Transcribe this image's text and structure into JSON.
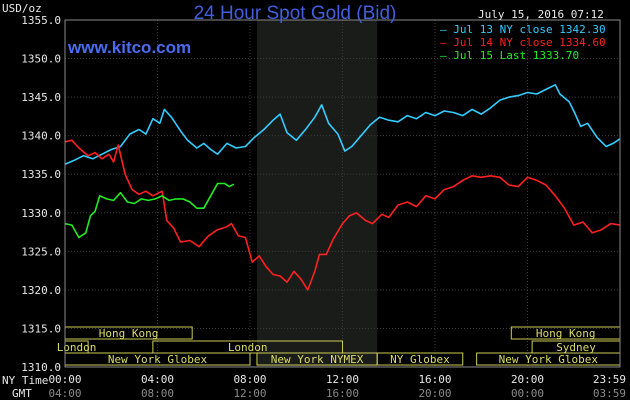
{
  "header": {
    "title": "24 Hour Spot Gold (Bid)",
    "date": "July 15, 2016 07:12",
    "units": "USD/oz",
    "brand": "www.kitco.com",
    "x_label_ny": "NY Time",
    "x_label_gmt": "GMT"
  },
  "colors": {
    "background": "#000000",
    "plot_background": "#000000",
    "night_shade": "#1a1c1a",
    "grid": "#3a3a3a",
    "jul13": "#33ccff",
    "jul14": "#ff2020",
    "jul15": "#22ee22",
    "market_border": "#cccc55",
    "market_text": "#dcdc6a"
  },
  "markets": [
    {
      "name": "Hong Kong",
      "start": 0,
      "end": 5.5,
      "row": 0
    },
    {
      "name": "Hong Kong",
      "start": 19.3,
      "end": 24,
      "row": 0
    },
    {
      "name": "London",
      "start": 0,
      "end": 1.0,
      "row": 1
    },
    {
      "name": "London",
      "start": 3.8,
      "end": 12.0,
      "row": 1
    },
    {
      "name": "Sydney",
      "start": 20.2,
      "end": 24,
      "row": 1
    },
    {
      "name": "New York Globex",
      "start": 0,
      "end": 8.0,
      "row": 2
    },
    {
      "name": "New York NYMEX",
      "start": 8.3,
      "end": 13.5,
      "row": 2
    },
    {
      "name": "NY Globex",
      "start": 13.5,
      "end": 17.2,
      "row": 2
    },
    {
      "name": "New York Globex",
      "start": 17.8,
      "end": 24,
      "row": 2
    }
  ],
  "chart_data": {
    "type": "line",
    "title": "24 Hour Spot Gold (Bid)",
    "ylabel": "USD/oz",
    "ylim": [
      1310,
      1355
    ],
    "xlim": [
      0,
      24
    ],
    "yticks": [
      "1310.0",
      "1315.0",
      "1320.0",
      "1325.0",
      "1330.0",
      "1335.0",
      "1340.0",
      "1345.0",
      "1350.0",
      "1355.0"
    ],
    "ny_ticks": [
      "00:00",
      "04:00",
      "08:00",
      "12:00",
      "16:00",
      "20:00",
      "23:59"
    ],
    "gmt_ticks": [
      "04:00",
      "08:00",
      "12:00",
      "16:00",
      "20:00",
      "00:00",
      "03:59"
    ],
    "grid": true,
    "night_band": [
      8.3,
      13.5
    ],
    "legend_position": "top-right",
    "series": [
      {
        "name": "Jul 13 NY close 1342.30",
        "color": "#33ccff",
        "points": [
          [
            0,
            1336.3
          ],
          [
            0.4,
            1336.8
          ],
          [
            0.8,
            1337.4
          ],
          [
            1.2,
            1337.0
          ],
          [
            1.6,
            1337.6
          ],
          [
            2,
            1338.2
          ],
          [
            2.4,
            1338.6
          ],
          [
            2.8,
            1340.2
          ],
          [
            3.2,
            1340.8
          ],
          [
            3.5,
            1340.2
          ],
          [
            3.8,
            1342.2
          ],
          [
            4.1,
            1341.6
          ],
          [
            4.3,
            1343.4
          ],
          [
            4.6,
            1342.4
          ],
          [
            5,
            1340.6
          ],
          [
            5.3,
            1339.4
          ],
          [
            5.7,
            1338.4
          ],
          [
            6,
            1339.0
          ],
          [
            6.3,
            1338.2
          ],
          [
            6.6,
            1337.6
          ],
          [
            7,
            1339.0
          ],
          [
            7.4,
            1338.4
          ],
          [
            7.8,
            1338.6
          ],
          [
            8.2,
            1339.8
          ],
          [
            8.6,
            1340.8
          ],
          [
            9,
            1342.0
          ],
          [
            9.3,
            1342.8
          ],
          [
            9.6,
            1340.4
          ],
          [
            10,
            1339.4
          ],
          [
            10.4,
            1340.8
          ],
          [
            10.8,
            1342.4
          ],
          [
            11.1,
            1344.0
          ],
          [
            11.4,
            1341.6
          ],
          [
            11.8,
            1340.2
          ],
          [
            12.1,
            1338.0
          ],
          [
            12.4,
            1338.6
          ],
          [
            12.8,
            1340.0
          ],
          [
            13.2,
            1341.4
          ],
          [
            13.6,
            1342.4
          ],
          [
            14,
            1342.0
          ],
          [
            14.4,
            1341.8
          ],
          [
            14.8,
            1342.6
          ],
          [
            15.2,
            1342.2
          ],
          [
            15.6,
            1343.0
          ],
          [
            16,
            1342.6
          ],
          [
            16.4,
            1343.2
          ],
          [
            16.8,
            1343.0
          ],
          [
            17.2,
            1342.6
          ],
          [
            17.6,
            1343.4
          ],
          [
            18,
            1342.8
          ],
          [
            18.4,
            1343.6
          ],
          [
            18.8,
            1344.6
          ],
          [
            19.2,
            1345.0
          ],
          [
            19.6,
            1345.2
          ],
          [
            20,
            1345.6
          ],
          [
            20.4,
            1345.4
          ],
          [
            20.8,
            1346.0
          ],
          [
            21.2,
            1346.6
          ],
          [
            21.4,
            1345.4
          ],
          [
            21.8,
            1344.4
          ],
          [
            22,
            1343.2
          ],
          [
            22.3,
            1341.2
          ],
          [
            22.6,
            1341.6
          ],
          [
            23,
            1339.8
          ],
          [
            23.4,
            1338.6
          ],
          [
            23.7,
            1339.0
          ],
          [
            24,
            1339.6
          ]
        ]
      },
      {
        "name": "Jul 14 NY close 1334.60",
        "color": "#ff2020",
        "points": [
          [
            0,
            1339.2
          ],
          [
            0.3,
            1339.4
          ],
          [
            0.6,
            1338.4
          ],
          [
            1,
            1337.4
          ],
          [
            1.3,
            1337.8
          ],
          [
            1.6,
            1337.0
          ],
          [
            1.9,
            1337.6
          ],
          [
            2.1,
            1336.6
          ],
          [
            2.3,
            1338.8
          ],
          [
            2.6,
            1335.0
          ],
          [
            2.9,
            1333.0
          ],
          [
            3.2,
            1332.4
          ],
          [
            3.5,
            1332.8
          ],
          [
            3.8,
            1332.2
          ],
          [
            4.2,
            1332.8
          ],
          [
            4.4,
            1329.0
          ],
          [
            4.7,
            1328.0
          ],
          [
            5,
            1326.2
          ],
          [
            5.4,
            1326.4
          ],
          [
            5.8,
            1325.6
          ],
          [
            6.2,
            1327.0
          ],
          [
            6.6,
            1327.8
          ],
          [
            7,
            1328.2
          ],
          [
            7.2,
            1328.6
          ],
          [
            7.5,
            1327.0
          ],
          [
            7.8,
            1326.8
          ],
          [
            8.1,
            1323.6
          ],
          [
            8.4,
            1324.4
          ],
          [
            8.7,
            1323.0
          ],
          [
            9,
            1322.0
          ],
          [
            9.3,
            1321.8
          ],
          [
            9.6,
            1321.0
          ],
          [
            9.9,
            1322.4
          ],
          [
            10.2,
            1321.4
          ],
          [
            10.5,
            1320.0
          ],
          [
            10.8,
            1322.4
          ],
          [
            11,
            1324.6
          ],
          [
            11.3,
            1324.6
          ],
          [
            11.6,
            1326.6
          ],
          [
            12,
            1328.6
          ],
          [
            12.3,
            1329.6
          ],
          [
            12.6,
            1330.0
          ],
          [
            13,
            1329.0
          ],
          [
            13.3,
            1328.6
          ],
          [
            13.7,
            1329.8
          ],
          [
            14,
            1329.4
          ],
          [
            14.4,
            1331.0
          ],
          [
            14.8,
            1331.4
          ],
          [
            15.2,
            1330.8
          ],
          [
            15.6,
            1332.2
          ],
          [
            16,
            1331.8
          ],
          [
            16.4,
            1333.0
          ],
          [
            16.8,
            1333.4
          ],
          [
            17.2,
            1334.2
          ],
          [
            17.6,
            1334.8
          ],
          [
            18,
            1334.6
          ],
          [
            18.4,
            1334.8
          ],
          [
            18.8,
            1334.6
          ],
          [
            19.2,
            1333.6
          ],
          [
            19.6,
            1333.4
          ],
          [
            20,
            1334.6
          ],
          [
            20.4,
            1334.2
          ],
          [
            20.8,
            1333.6
          ],
          [
            21.2,
            1332.2
          ],
          [
            21.6,
            1330.6
          ],
          [
            22,
            1328.4
          ],
          [
            22.4,
            1328.8
          ],
          [
            22.8,
            1327.4
          ],
          [
            23.2,
            1327.8
          ],
          [
            23.6,
            1328.6
          ],
          [
            24,
            1328.4
          ]
        ]
      },
      {
        "name": "Jul 15 Last 1333.70",
        "color": "#22ee22",
        "points": [
          [
            0,
            1328.6
          ],
          [
            0.3,
            1328.4
          ],
          [
            0.6,
            1326.8
          ],
          [
            0.9,
            1327.4
          ],
          [
            1.1,
            1329.6
          ],
          [
            1.3,
            1330.2
          ],
          [
            1.5,
            1332.2
          ],
          [
            1.8,
            1331.8
          ],
          [
            2.1,
            1331.6
          ],
          [
            2.4,
            1332.6
          ],
          [
            2.7,
            1331.4
          ],
          [
            3,
            1331.2
          ],
          [
            3.3,
            1331.8
          ],
          [
            3.6,
            1331.6
          ],
          [
            3.9,
            1331.8
          ],
          [
            4.2,
            1332.2
          ],
          [
            4.5,
            1331.6
          ],
          [
            4.8,
            1331.8
          ],
          [
            5.1,
            1331.8
          ],
          [
            5.4,
            1331.4
          ],
          [
            5.7,
            1330.6
          ],
          [
            6,
            1330.6
          ],
          [
            6.3,
            1332.2
          ],
          [
            6.6,
            1333.8
          ],
          [
            6.9,
            1333.8
          ],
          [
            7.1,
            1333.4
          ],
          [
            7.3,
            1333.7
          ]
        ]
      }
    ]
  }
}
